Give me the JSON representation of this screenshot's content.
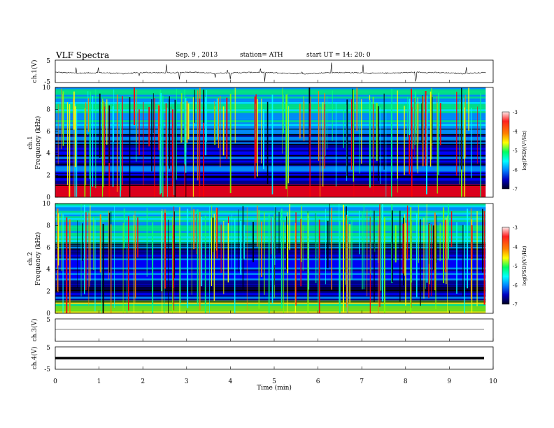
{
  "header": {
    "title": "VLF  Spectra",
    "date": "Sep. 9  , 2013",
    "station": "station= ATH",
    "start_ut": "start  UT  =    14: 20: 0"
  },
  "chart_data": [
    {
      "type": "line",
      "ylabel": "ch.1(V)",
      "ylim": [
        -5,
        5
      ],
      "yticks": [
        5,
        -5
      ],
      "description_series": [
        {
          "values": [
            -0.4,
            -0.8,
            -0.6,
            -1.0,
            -0.5,
            -0.7,
            -0.3,
            -0.9,
            -0.6,
            -0.4,
            -0.8,
            -1.1,
            -0.6,
            -0.5,
            -0.9,
            -0.7,
            -0.4,
            -0.6,
            -1.0,
            -0.5
          ]
        }
      ]
    },
    {
      "type": "heatmap",
      "ylabel": "Frequency  (kHz)",
      "channel_label": "ch.1",
      "ylim": [
        0,
        10
      ],
      "yticks": [
        0,
        2,
        4,
        6,
        8,
        10
      ],
      "colorbar": {
        "label": "log(PSD)(V²/Hz)",
        "range": [
          -7,
          -3
        ],
        "ticks": [
          "-3",
          "-4",
          "-5",
          "-6",
          "-7"
        ]
      }
    },
    {
      "type": "heatmap",
      "ylabel": "Frequency  (kHz)",
      "channel_label": "ch.2",
      "ylim": [
        0,
        10
      ],
      "yticks": [
        0,
        2,
        4,
        6,
        8,
        10
      ],
      "colorbar": {
        "label": "log(PSD)(V²/Hz)",
        "range": [
          -7,
          -3
        ],
        "ticks": [
          "-3",
          "-4",
          "-5",
          "-6",
          "-7"
        ]
      }
    },
    {
      "type": "line",
      "ylabel": "ch.3(V)",
      "ylim": [
        -5,
        5
      ],
      "yticks": [
        5
      ],
      "values_constant": 0
    },
    {
      "type": "line",
      "ylabel": "ch.4(V)",
      "ylim": [
        -5,
        5
      ],
      "yticks": [
        5,
        -5
      ],
      "values_constant": 0
    }
  ],
  "xaxis": {
    "label": "Time  (min)",
    "xlim": [
      0,
      10
    ],
    "ticks": [
      "0",
      "1",
      "2",
      "3",
      "4",
      "5",
      "6",
      "7",
      "8",
      "9",
      "10"
    ],
    "data_end": 9.83
  },
  "colors": {
    "spectrum_scale": [
      "#000000",
      "#000080",
      "#0000ff",
      "#00a0ff",
      "#00ffff",
      "#00ff80",
      "#80ff00",
      "#ffff00",
      "#ff8000",
      "#ff0000",
      "#ffc0c0"
    ]
  }
}
